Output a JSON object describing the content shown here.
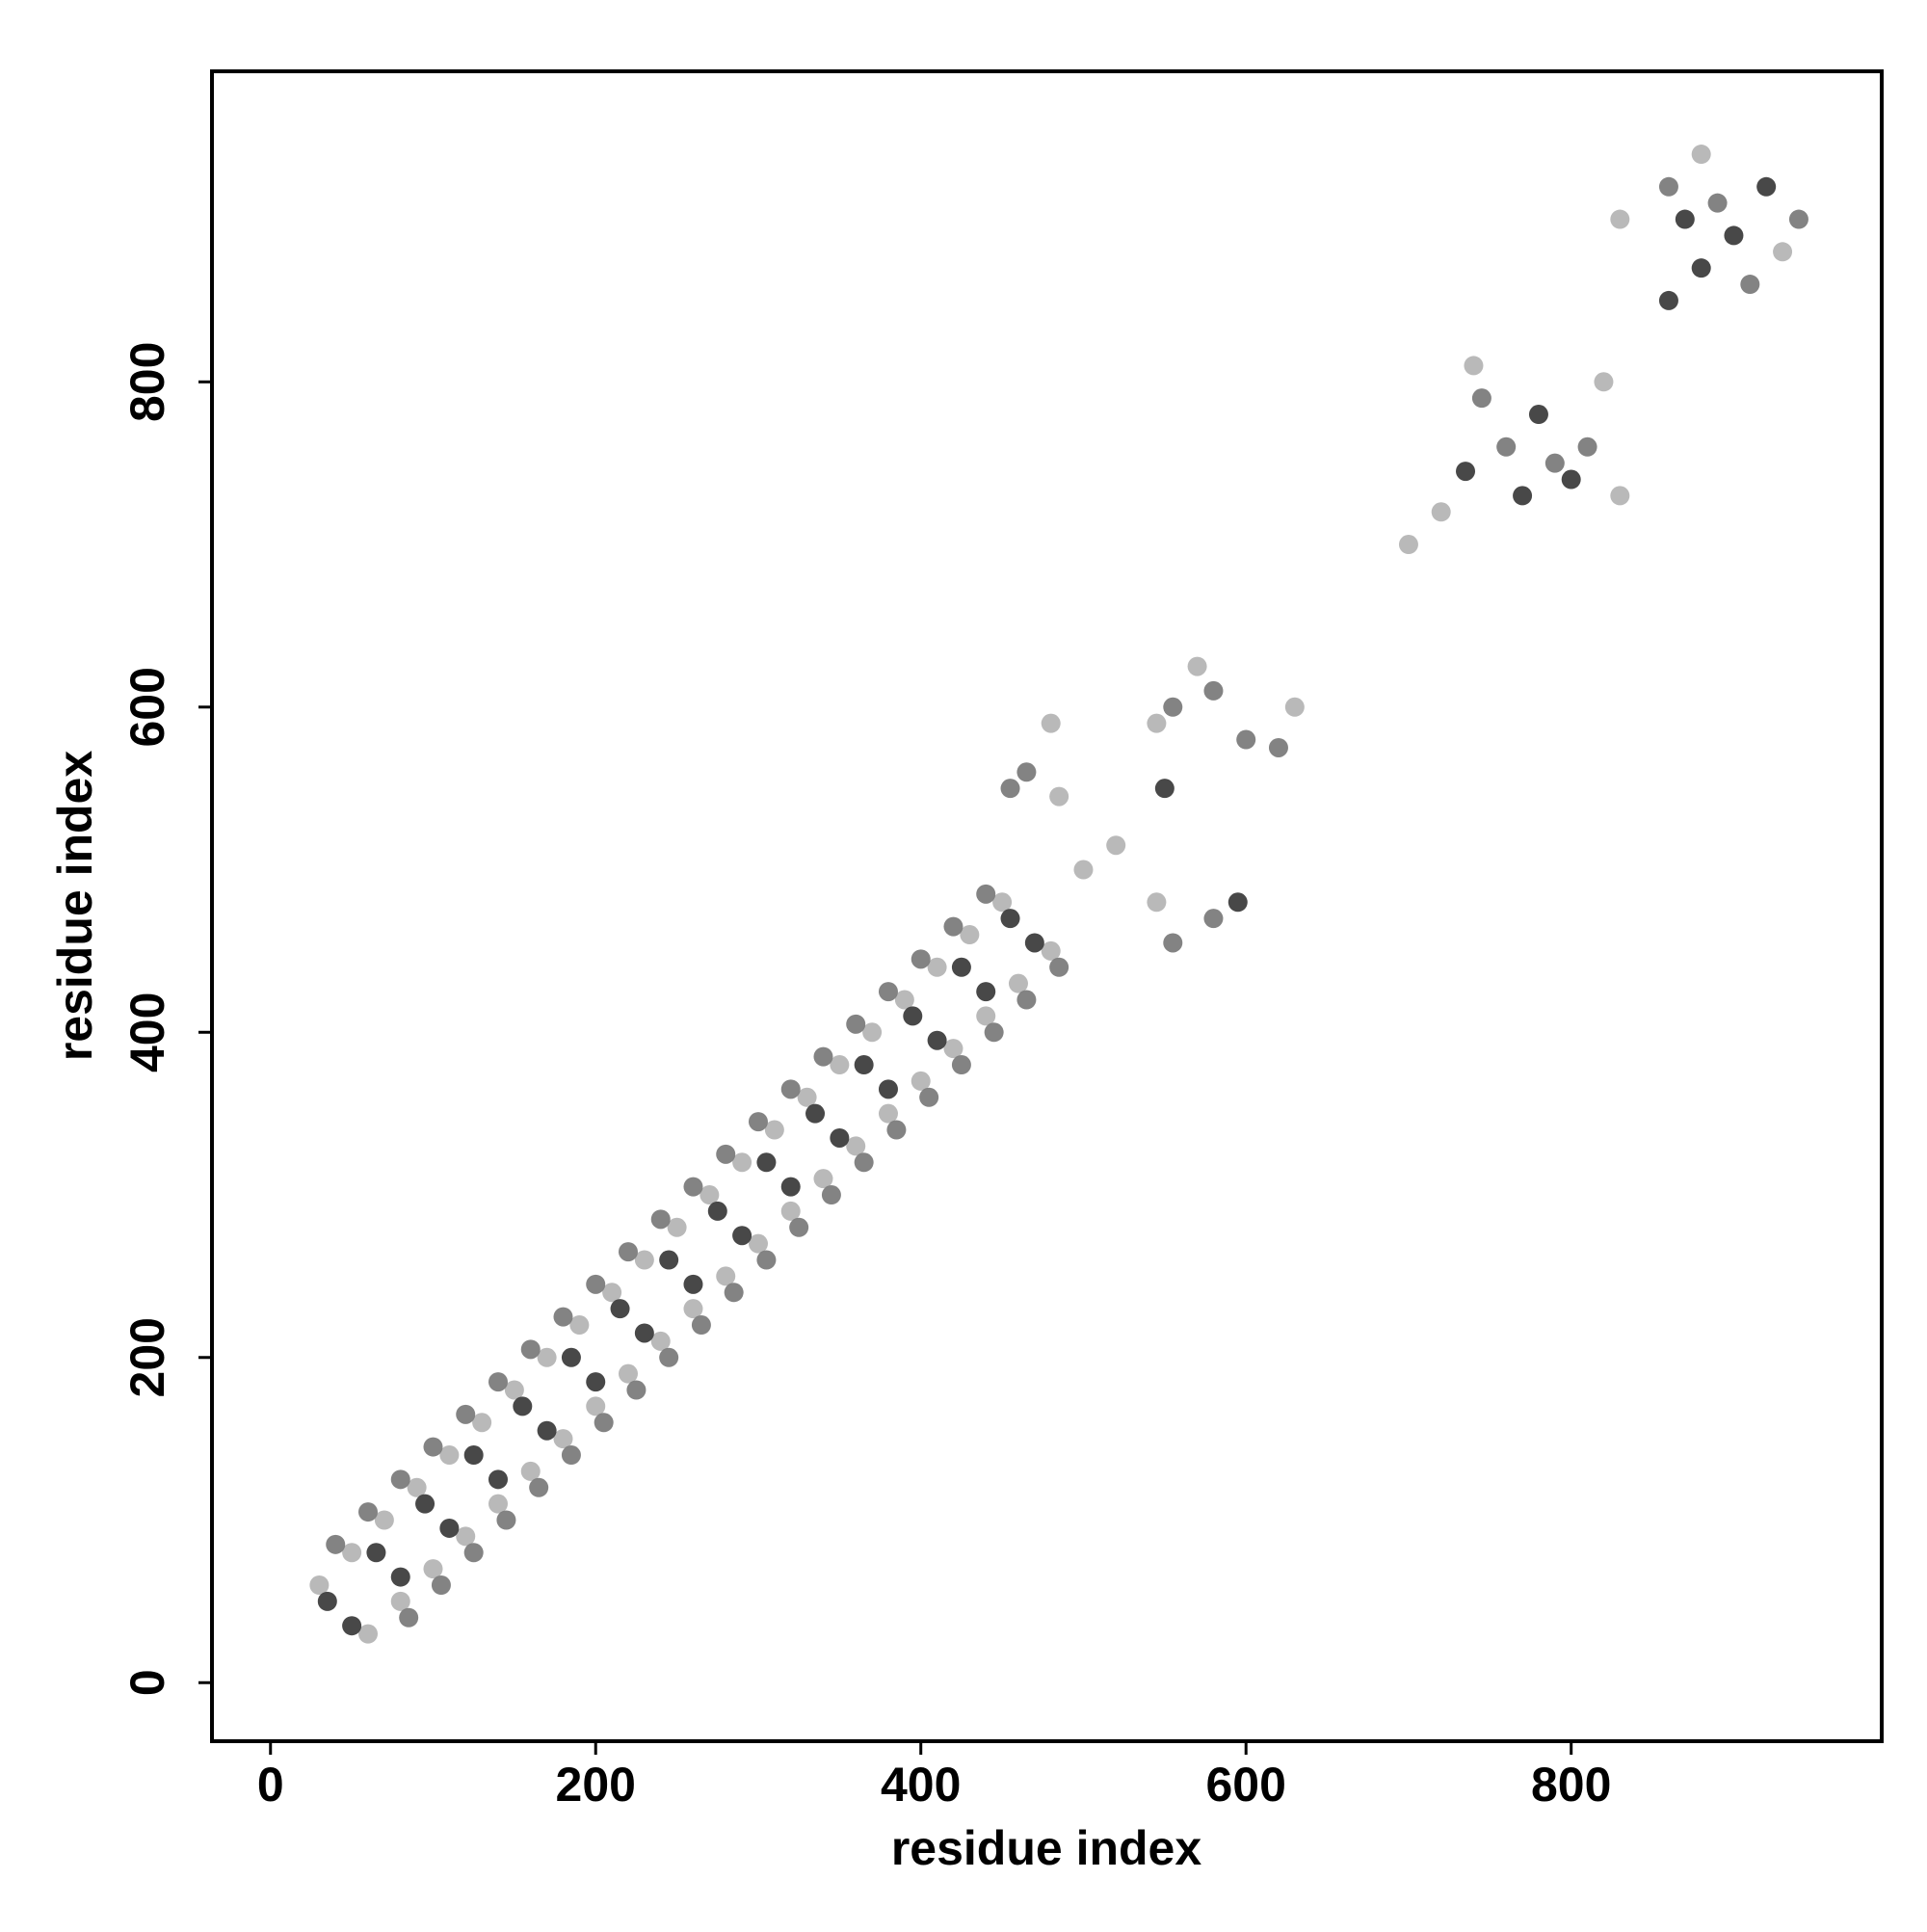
{
  "chart_data": {
    "type": "scatter",
    "xlabel": "residue index",
    "ylabel": "residue index",
    "xlim": [
      -36,
      991
    ],
    "ylim": [
      -36,
      991
    ],
    "xticks": [
      0,
      200,
      400,
      600,
      800
    ],
    "yticks": [
      0,
      200,
      400,
      600,
      800
    ],
    "series": [
      {
        "color": "#b3b3b3",
        "x": [
          30,
          50,
          70,
          90,
          110,
          130,
          150,
          170,
          190,
          210,
          230,
          250,
          270,
          290,
          310,
          330,
          350,
          370,
          390,
          410,
          430,
          450,
          60,
          80,
          100,
          120,
          140,
          160,
          180,
          200,
          220,
          240,
          260,
          280,
          300,
          320,
          340,
          360,
          380,
          400,
          420,
          440,
          460,
          480,
          480,
          485,
          500,
          520,
          545,
          570,
          630,
          545,
          700,
          720,
          740,
          820,
          830,
          880,
          930,
          830
        ],
        "values": [
          60,
          80,
          100,
          120,
          140,
          160,
          180,
          200,
          220,
          240,
          260,
          280,
          300,
          320,
          340,
          360,
          380,
          400,
          420,
          440,
          460,
          480,
          30,
          50,
          70,
          90,
          110,
          130,
          150,
          170,
          190,
          210,
          230,
          250,
          270,
          290,
          310,
          330,
          350,
          370,
          390,
          410,
          430,
          450,
          590,
          545,
          500,
          515,
          590,
          625,
          600,
          480,
          700,
          720,
          810,
          800,
          730,
          940,
          880,
          900
        ]
      },
      {
        "color": "#787878",
        "x": [
          40,
          60,
          80,
          100,
          120,
          140,
          160,
          180,
          200,
          220,
          240,
          260,
          280,
          300,
          320,
          340,
          360,
          380,
          400,
          420,
          440,
          85,
          105,
          125,
          145,
          165,
          185,
          205,
          225,
          245,
          265,
          285,
          305,
          325,
          345,
          365,
          385,
          405,
          425,
          445,
          465,
          485,
          455,
          465,
          555,
          580,
          600,
          620,
          555,
          580,
          745,
          760,
          790,
          810,
          860,
          890,
          910,
          940
        ],
        "values": [
          85,
          105,
          125,
          145,
          165,
          185,
          205,
          225,
          245,
          265,
          285,
          305,
          325,
          345,
          365,
          385,
          405,
          425,
          445,
          465,
          485,
          40,
          60,
          80,
          100,
          120,
          140,
          160,
          180,
          200,
          220,
          240,
          260,
          280,
          300,
          320,
          340,
          360,
          380,
          400,
          420,
          440,
          550,
          560,
          600,
          610,
          580,
          575,
          455,
          470,
          790,
          760,
          750,
          760,
          920,
          910,
          860,
          900
        ]
      },
      {
        "color": "#383838",
        "x": [
          35,
          65,
          95,
          125,
          155,
          185,
          215,
          245,
          275,
          305,
          335,
          365,
          395,
          425,
          455,
          50,
          80,
          110,
          140,
          170,
          200,
          230,
          260,
          290,
          320,
          350,
          380,
          410,
          440,
          470,
          550,
          595,
          735,
          780,
          800,
          770,
          870,
          880,
          900,
          920,
          860
        ],
        "values": [
          50,
          80,
          110,
          140,
          170,
          200,
          230,
          260,
          290,
          320,
          350,
          380,
          410,
          440,
          470,
          35,
          65,
          95,
          125,
          155,
          185,
          215,
          245,
          275,
          305,
          335,
          365,
          395,
          425,
          455,
          550,
          480,
          745,
          780,
          740,
          730,
          900,
          870,
          890,
          920,
          850
        ]
      }
    ]
  }
}
